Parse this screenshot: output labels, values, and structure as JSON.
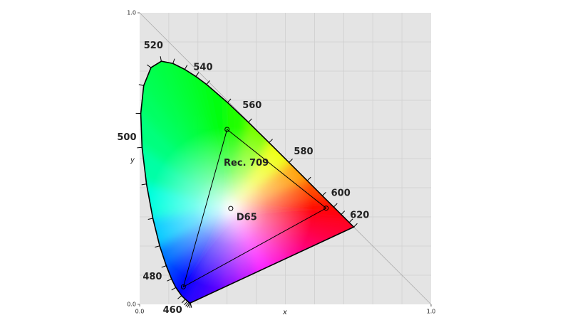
{
  "chart_data": {
    "type": "chromaticity",
    "x_label": "x",
    "y_label": "y",
    "xlim": [
      0,
      1
    ],
    "ylim": [
      0,
      1
    ],
    "xticks": [
      {
        "value": 0,
        "label": "0.0"
      },
      {
        "value": 1,
        "label": "1.0"
      }
    ],
    "yticks": [
      {
        "value": 0,
        "label": "0.0"
      },
      {
        "value": 1,
        "label": "1.0"
      }
    ],
    "xgrid": [
      0.1,
      0.2,
      0.3,
      0.4,
      0.5,
      0.6,
      0.7,
      0.8,
      0.9
    ],
    "ygrid": [
      0.1,
      0.2,
      0.3,
      0.4,
      0.5,
      0.6,
      0.7,
      0.8,
      0.9
    ],
    "grid": true,
    "locus": {
      "wavelength": [
        null,
        null,
        null,
        null,
        null,
        null,
        460,
        null,
        null,
        480,
        null,
        null,
        null,
        500,
        null,
        null,
        null,
        520,
        null,
        null,
        null,
        540,
        null,
        560,
        null,
        580,
        null,
        600,
        null,
        620,
        null,
        null
      ],
      "x": [
        0.1741,
        0.1733,
        0.1714,
        0.1689,
        0.1644,
        0.1566,
        0.144,
        0.1241,
        0.1096,
        0.0913,
        0.0687,
        0.0454,
        0.0235,
        0.0082,
        0.0039,
        0.0139,
        0.0389,
        0.0743,
        0.1142,
        0.1547,
        0.1929,
        0.2296,
        0.3016,
        0.3731,
        0.4441,
        0.5125,
        0.5752,
        0.627,
        0.6658,
        0.6915,
        0.719,
        0.7347
      ],
      "y": [
        0.005,
        0.0048,
        0.0051,
        0.0069,
        0.0109,
        0.0177,
        0.0297,
        0.0578,
        0.0868,
        0.1327,
        0.2007,
        0.295,
        0.4127,
        0.5384,
        0.6548,
        0.7502,
        0.812,
        0.8338,
        0.8262,
        0.8059,
        0.7816,
        0.7543,
        0.6923,
        0.6245,
        0.5547,
        0.4866,
        0.4242,
        0.3725,
        0.334,
        0.3083,
        0.2809,
        0.2653
      ]
    },
    "gamut": {
      "name": "Rec. 709",
      "x": [
        0.64,
        0.3,
        0.15
      ],
      "y": [
        0.33,
        0.6,
        0.06
      ]
    },
    "whitepoint": {
      "name": "D65",
      "x": 0.3127,
      "y": 0.329
    }
  }
}
